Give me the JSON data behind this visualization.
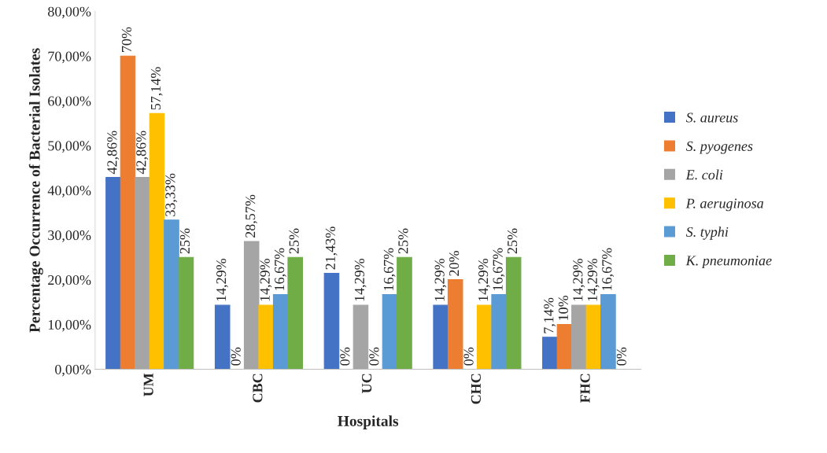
{
  "chart_data": {
    "type": "bar",
    "xlabel": "Hospitals",
    "ylabel": "Percentage Occurrence of Bacterial Isolates",
    "categories": [
      "UM",
      "CBC",
      "UC",
      "CHC",
      "FHC"
    ],
    "series": [
      {
        "name": "S. aureus",
        "color": "#4472c4",
        "values": [
          42.86,
          14.29,
          21.43,
          14.29,
          7.14
        ],
        "value_labels": [
          "42,86%",
          "14,29%",
          "21,43%",
          "14,29%",
          "7,14%"
        ]
      },
      {
        "name": "S. pyogenes",
        "color": "#ed7d31",
        "values": [
          70,
          0,
          0,
          20,
          10
        ],
        "value_labels": [
          "70%",
          "0%",
          "0%",
          "20%",
          "10%"
        ]
      },
      {
        "name": "E. coli",
        "color": "#a5a5a5",
        "values": [
          42.86,
          28.57,
          14.29,
          0,
          14.29
        ],
        "value_labels": [
          "42,86%",
          "28,57%",
          "14,29%",
          "0%",
          "14,29%"
        ]
      },
      {
        "name": "P. aeruginosa",
        "color": "#ffc000",
        "values": [
          57.14,
          14.29,
          0,
          14.29,
          14.29
        ],
        "value_labels": [
          "57,14%",
          "14,29%",
          "0%",
          "14,29%",
          "14,29%"
        ]
      },
      {
        "name": "S. typhi",
        "color": "#5b9bd5",
        "values": [
          33.33,
          16.67,
          16.67,
          16.67,
          16.67
        ],
        "value_labels": [
          "33,33%",
          "16,67%",
          "16,67%",
          "16,67%",
          "16,67%"
        ]
      },
      {
        "name": "K. pneumoniae",
        "color": "#70ad47",
        "values": [
          25,
          25,
          25,
          25,
          0
        ],
        "value_labels": [
          "25%",
          "25%",
          "25%",
          "25%",
          "0%"
        ]
      }
    ],
    "ylim": [
      0,
      80
    ],
    "yticks": [
      {
        "value": 0,
        "label": "0,00%"
      },
      {
        "value": 10,
        "label": "10,00%"
      },
      {
        "value": 20,
        "label": "20,00%"
      },
      {
        "value": 30,
        "label": "30,00%"
      },
      {
        "value": 40,
        "label": "40,00%"
      },
      {
        "value": 50,
        "label": "50,00%"
      },
      {
        "value": 60,
        "label": "60,00%"
      },
      {
        "value": 70,
        "label": "70,00%"
      },
      {
        "value": 80,
        "label": "80,00%"
      }
    ],
    "grid": false,
    "legend": "right"
  }
}
